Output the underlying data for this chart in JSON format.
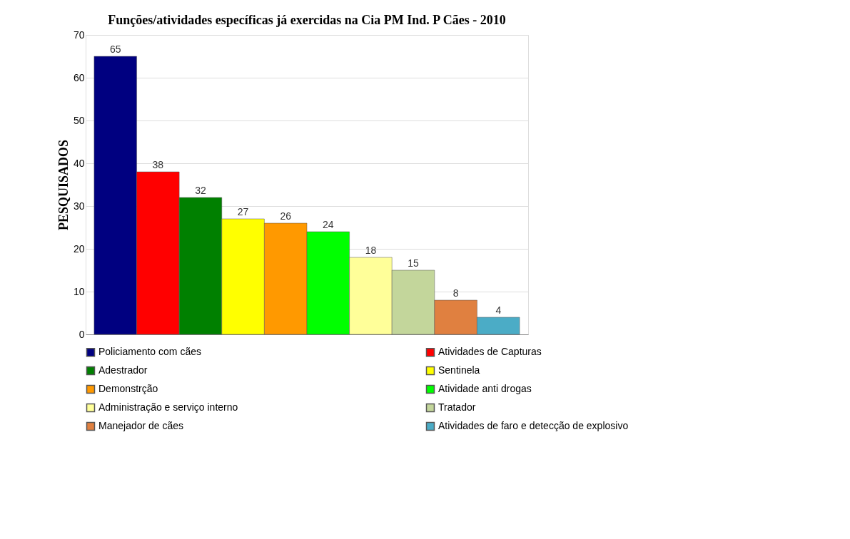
{
  "chart_data": {
    "type": "bar",
    "title": "Funções/atividades específicas já exercidas na Cia PM Ind. P Cães - 2010",
    "ylabel": "PESQUISADOS",
    "categories": [
      null,
      null,
      null,
      null,
      null,
      null,
      null,
      null,
      null,
      null
    ],
    "series": [
      {
        "name": "Policiamento com cães",
        "color": "#000080",
        "values": [
          65,
          null,
          null,
          null,
          null,
          null,
          null,
          null,
          null,
          null
        ]
      },
      {
        "name": "Atividades de Capturas",
        "color": "#ff0000",
        "values": [
          null,
          38,
          null,
          null,
          null,
          null,
          null,
          null,
          null,
          null
        ]
      },
      {
        "name": "Adestrador",
        "color": "#008000",
        "values": [
          null,
          null,
          32,
          null,
          null,
          null,
          null,
          null,
          null,
          null
        ]
      },
      {
        "name": "Sentinela",
        "color": "#ffff00",
        "values": [
          null,
          null,
          null,
          27,
          null,
          null,
          null,
          null,
          null,
          null
        ]
      },
      {
        "name": "Demonstrção",
        "color": "#ff9900",
        "values": [
          null,
          null,
          null,
          null,
          26,
          null,
          null,
          null,
          null,
          null
        ]
      },
      {
        "name": "Atividade anti drogas",
        "color": "#00ff00",
        "values": [
          null,
          null,
          null,
          null,
          null,
          24,
          null,
          null,
          null,
          null
        ]
      },
      {
        "name": "Administração e serviço interno",
        "color": "#ffff99",
        "values": [
          null,
          null,
          null,
          null,
          null,
          null,
          18,
          null,
          null,
          null
        ]
      },
      {
        "name": "Tratador",
        "color": "#c3d69b",
        "values": [
          null,
          null,
          null,
          null,
          null,
          null,
          null,
          15,
          null,
          null
        ]
      },
      {
        "name": "Manejador de cães",
        "color": "#e08040",
        "values": [
          null,
          null,
          null,
          null,
          null,
          null,
          null,
          null,
          8,
          null
        ]
      },
      {
        "name": "Atividades de faro e detecção de explosivo",
        "color": "#4bacc6",
        "values": [
          null,
          null,
          null,
          null,
          null,
          null,
          null,
          null,
          null,
          4
        ]
      }
    ],
    "ylim": [
      0,
      70
    ],
    "yticks": [
      0,
      10,
      20,
      30,
      40,
      50,
      60,
      70
    ],
    "grid": "y",
    "legend": "bottom",
    "data_labels": true,
    "tick_labels": "y"
  }
}
